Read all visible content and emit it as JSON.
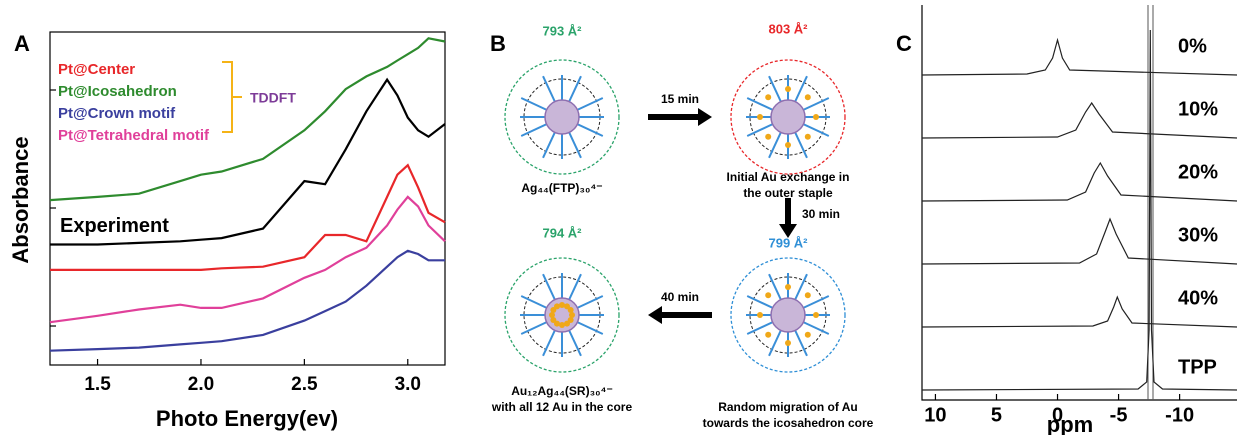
{
  "chart_data": [
    {
      "type": "line",
      "panel_label": "A",
      "x_label": "Photo Energy(ev)",
      "y_label": "Absorbance",
      "x": [
        1.27,
        1.5,
        1.7,
        1.9,
        2.0,
        2.1,
        2.3,
        2.5,
        2.6,
        2.7,
        2.8,
        2.9,
        2.95,
        3.0,
        3.05,
        3.1,
        3.18
      ],
      "xlim": [
        1.27,
        3.18
      ],
      "xticks": [
        1.5,
        {
          "value": 2.0,
          "label": "2.0"
        },
        2.5,
        {
          "value": 3.0,
          "label": "3.0"
        }
      ],
      "ylim": [
        0,
        10.5
      ],
      "annotation": "TDDFT",
      "series": [
        {
          "name": "Experiment",
          "color": "#000000",
          "values": [
            3.8,
            3.8,
            3.85,
            3.9,
            3.95,
            4.0,
            4.3,
            5.8,
            5.7,
            6.8,
            8.0,
            9.0,
            8.5,
            7.8,
            7.4,
            7.2,
            7.6
          ]
        },
        {
          "name": "Pt@Center",
          "color": "#e8272a",
          "values": [
            3.0,
            3.0,
            3.0,
            3.0,
            3.0,
            3.05,
            3.1,
            3.4,
            4.1,
            4.1,
            3.9,
            5.3,
            6.0,
            6.3,
            5.6,
            4.8,
            4.5
          ]
        },
        {
          "name": "Pt@Icosahedron",
          "color": "#2e8b2e",
          "values": [
            5.2,
            5.3,
            5.4,
            5.8,
            6.0,
            6.1,
            6.5,
            7.4,
            8.0,
            8.7,
            9.1,
            9.4,
            9.6,
            9.8,
            10.0,
            10.3,
            10.2
          ]
        },
        {
          "name": "Pt@Crown motif",
          "color": "#3a3f9e",
          "values": [
            0.45,
            0.5,
            0.55,
            0.65,
            0.7,
            0.75,
            0.95,
            1.4,
            1.7,
            2.0,
            2.5,
            3.1,
            3.4,
            3.6,
            3.5,
            3.3,
            3.3
          ]
        },
        {
          "name": "Pt@Tetrahedral motif",
          "color": "#e0409a",
          "values": [
            1.35,
            1.55,
            1.75,
            1.9,
            1.8,
            1.8,
            2.1,
            2.75,
            3.0,
            3.4,
            3.7,
            4.4,
            4.9,
            5.3,
            5.0,
            4.4,
            3.9
          ]
        }
      ]
    },
    {
      "type": "line",
      "panel_label": "C",
      "x_label": "ppm",
      "xlim": [
        11.1,
        -14.7
      ],
      "xticks": [
        10,
        5,
        0,
        -5,
        -10
      ],
      "series": [
        {
          "name": "0%",
          "color": "#222222",
          "x": [
            11.1,
            2.5,
            1.0,
            0.4,
            0.0,
            -0.4,
            -1.0,
            -14.7
          ],
          "values": [
            0,
            1,
            5,
            17,
            35,
            17,
            5,
            0
          ]
        },
        {
          "name": "10%",
          "color": "#222222",
          "x": [
            11.1,
            0.0,
            -1.5,
            -2.3,
            -2.8,
            -3.4,
            -4.5,
            -14.7
          ],
          "values": [
            0,
            1,
            8,
            26,
            35,
            24,
            6,
            0
          ]
        },
        {
          "name": "20%",
          "color": "#222222",
          "x": [
            11.1,
            -0.8,
            -2.3,
            -3.0,
            -3.5,
            -4.1,
            -5.2,
            -14.7
          ],
          "values": [
            0,
            1,
            9,
            28,
            38,
            25,
            6,
            0
          ]
        },
        {
          "name": "30%",
          "color": "#222222",
          "x": [
            11.1,
            -1.8,
            -3.2,
            -3.9,
            -4.3,
            -4.8,
            -5.8,
            -14.7
          ],
          "values": [
            0,
            1,
            10,
            32,
            45,
            30,
            6,
            0
          ]
        },
        {
          "name": "40%",
          "color": "#222222",
          "x": [
            11.1,
            -2.9,
            -4.1,
            -4.6,
            -4.9,
            -5.3,
            -6.1,
            -14.7
          ],
          "values": [
            0,
            1,
            6,
            20,
            30,
            18,
            4,
            0
          ]
        },
        {
          "name": "TPP",
          "color": "#222222",
          "x": [
            11.1,
            -6.6,
            -7.3,
            -7.5,
            -7.6,
            -7.7,
            -7.9,
            -8.6,
            -14.7
          ],
          "values": [
            0,
            1,
            8,
            60,
            360,
            60,
            8,
            1,
            0
          ]
        }
      ]
    }
  ],
  "diagram": {
    "panel_label": "B",
    "clusters": [
      {
        "area": "793 Å²",
        "caption": [
          "Ag₄₄(FTP)₃₀⁴⁻"
        ]
      },
      {
        "area": "803 Å²",
        "caption": [
          "Initial Au exchange in",
          "the outer staple"
        ]
      },
      {
        "area": "799 Å²",
        "caption": [
          "Random migration of Au",
          "towards the icosahedron core"
        ]
      },
      {
        "area": "794 Å²",
        "caption": [
          "Au₁₂Ag₄₄(SR)₃₀⁴⁻",
          "with all 12 Au in the core"
        ]
      }
    ],
    "arrows": [
      "15 min",
      "30 min",
      "40 min"
    ]
  }
}
